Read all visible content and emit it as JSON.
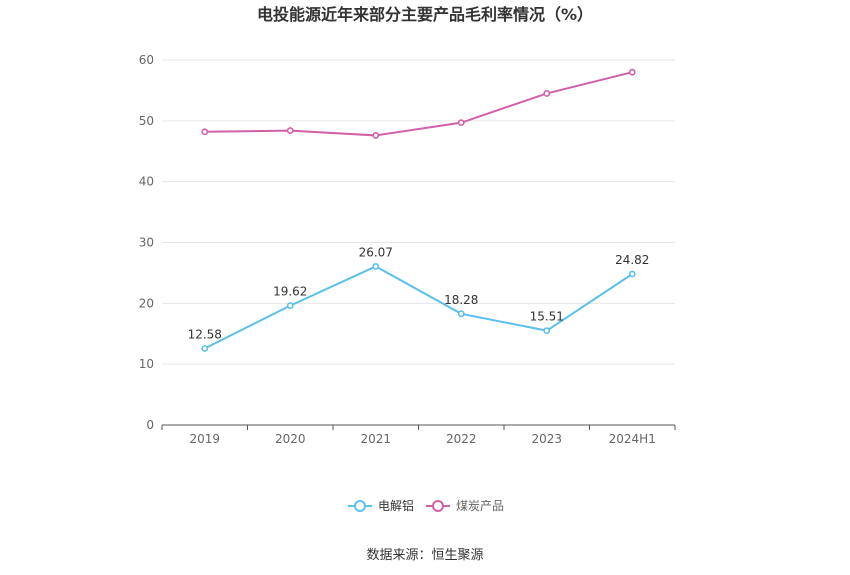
{
  "chart_data": {
    "type": "line",
    "title": "电投能源近年来部分主要产品毛利率情况（%）",
    "categories": [
      "2019",
      "2020",
      "2021",
      "2022",
      "2023",
      "2024H1"
    ],
    "ylim": [
      0,
      60
    ],
    "yticks": [
      "0",
      "10",
      "20",
      "30",
      "40",
      "50",
      "60"
    ],
    "grid": true,
    "legend_position": "bottom",
    "series": [
      {
        "name": "电解铝",
        "color": "#5bc0eb",
        "values": [
          12.58,
          19.62,
          26.07,
          18.28,
          15.51,
          24.82
        ],
        "labels": [
          "12.58",
          "19.62",
          "26.07",
          "18.28",
          "15.51",
          "24.82"
        ]
      },
      {
        "name": "煤炭产品",
        "color": "#d160a8",
        "values": [
          48.2,
          48.4,
          47.6,
          49.7,
          54.5,
          58.0
        ],
        "labels": null
      }
    ],
    "source": "数据来源：恒生聚源"
  }
}
